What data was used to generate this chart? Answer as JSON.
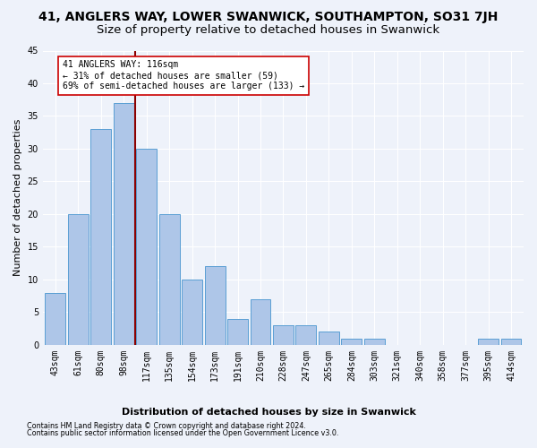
{
  "title": "41, ANGLERS WAY, LOWER SWANWICK, SOUTHAMPTON, SO31 7JH",
  "subtitle": "Size of property relative to detached houses in Swanwick",
  "xlabel": "Distribution of detached houses by size in Swanwick",
  "ylabel": "Number of detached properties",
  "categories": [
    "43sqm",
    "61sqm",
    "80sqm",
    "98sqm",
    "117sqm",
    "135sqm",
    "154sqm",
    "173sqm",
    "191sqm",
    "210sqm",
    "228sqm",
    "247sqm",
    "265sqm",
    "284sqm",
    "303sqm",
    "321sqm",
    "340sqm",
    "358sqm",
    "377sqm",
    "395sqm",
    "414sqm"
  ],
  "values": [
    8,
    20,
    33,
    37,
    30,
    20,
    10,
    12,
    4,
    7,
    3,
    3,
    2,
    1,
    1,
    0,
    0,
    0,
    0,
    1,
    1
  ],
  "bar_color": "#aec6e8",
  "bar_edge_color": "#5a9fd4",
  "subject_line_index": 4,
  "subject_line_color": "#8b0000",
  "annotation_line1": "41 ANGLERS WAY: 116sqm",
  "annotation_line2": "← 31% of detached houses are smaller (59)",
  "annotation_line3": "69% of semi-detached houses are larger (133) →",
  "annotation_box_color": "#ffffff",
  "annotation_box_edge_color": "#cc0000",
  "ylim": [
    0,
    45
  ],
  "yticks": [
    0,
    5,
    10,
    15,
    20,
    25,
    30,
    35,
    40,
    45
  ],
  "footer1": "Contains HM Land Registry data © Crown copyright and database right 2024.",
  "footer2": "Contains public sector information licensed under the Open Government Licence v3.0.",
  "background_color": "#eef2fa",
  "grid_color": "#ffffff",
  "title_fontsize": 10,
  "subtitle_fontsize": 9.5,
  "axis_label_fontsize": 8,
  "tick_fontsize": 7
}
